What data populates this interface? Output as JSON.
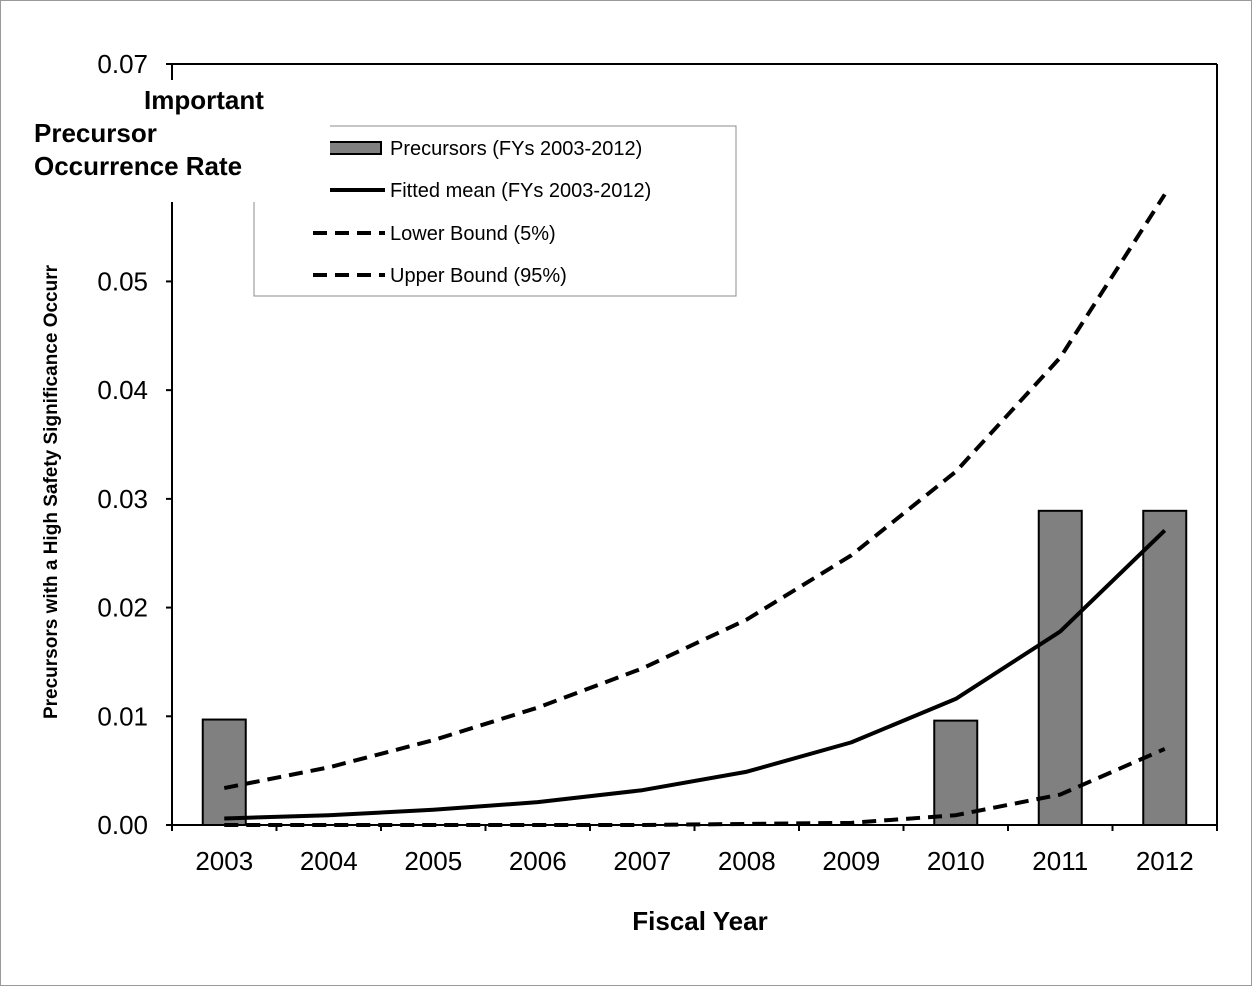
{
  "chart_data": {
    "type": "bar",
    "annotation": [
      "Important",
      "Precursor",
      "Occurrence Rate"
    ],
    "xlabel": "Fiscal Year",
    "ylabel": "Precursors with a High Safety Significance Occurr",
    "ylim": [
      0,
      0.07
    ],
    "yticks": [
      "0.00",
      "0.01",
      "0.02",
      "0.03",
      "0.04",
      "0.05",
      "0.07"
    ],
    "categories": [
      "2003",
      "2004",
      "2005",
      "2006",
      "2007",
      "2008",
      "2009",
      "2010",
      "2011",
      "2012"
    ],
    "legend_position": "top-left",
    "grid": false,
    "colors": {
      "bar": "#808080",
      "line": "#000000"
    },
    "series": [
      {
        "name": "Precursors (FYs 2003-2012)",
        "kind": "bar",
        "values": [
          0.0097,
          0,
          0,
          0,
          0,
          0,
          0,
          0.0096,
          0.0289,
          0.0289
        ]
      },
      {
        "name": "Fitted mean (FYs 2003-2012)",
        "kind": "line",
        "style": "solid",
        "values": [
          0.0006,
          0.0009,
          0.0014,
          0.0021,
          0.0032,
          0.0049,
          0.0076,
          0.0116,
          0.0178,
          0.0271
        ]
      },
      {
        "name": "Lower Bound (5%)",
        "kind": "line",
        "style": "dashed",
        "values": [
          0.0,
          0.0,
          0.0,
          0.0,
          0.0,
          0.0001,
          0.0002,
          0.0009,
          0.0028,
          0.007
        ]
      },
      {
        "name": "Upper Bound (95%)",
        "kind": "line",
        "style": "dashed",
        "values": [
          0.0034,
          0.0053,
          0.0078,
          0.0108,
          0.0144,
          0.0189,
          0.0248,
          0.0325,
          0.043,
          0.058
        ]
      }
    ]
  }
}
